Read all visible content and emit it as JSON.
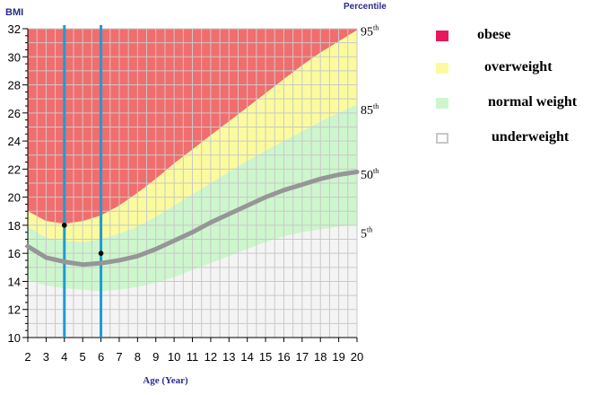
{
  "chart_data": {
    "type": "area",
    "title": "",
    "xlabel": "Age (Year)",
    "ylabel": "BMI",
    "right_axis_title": "Percentile",
    "xlim": [
      2,
      20
    ],
    "ylim": [
      10,
      32
    ],
    "x_ticks": [
      2,
      3,
      4,
      5,
      6,
      7,
      8,
      9,
      10,
      11,
      12,
      13,
      14,
      15,
      16,
      17,
      18,
      19,
      20
    ],
    "y_ticks": [
      10,
      12,
      14,
      16,
      18,
      20,
      22,
      24,
      26,
      28,
      30,
      32
    ],
    "grid": true,
    "percentile_labels": [
      {
        "label": "95th",
        "value": 31.9
      },
      {
        "label": "85th",
        "value": 26.3
      },
      {
        "label": "50th",
        "value": 21.7
      },
      {
        "label": "5th",
        "value": 17.5
      }
    ],
    "x": [
      2,
      3,
      4,
      5,
      6,
      7,
      8,
      9,
      10,
      11,
      12,
      13,
      14,
      15,
      16,
      17,
      18,
      19,
      20
    ],
    "series": [
      {
        "name": "5th",
        "values": [
          14.1,
          13.7,
          13.5,
          13.4,
          13.3,
          13.4,
          13.6,
          13.9,
          14.3,
          14.8,
          15.3,
          15.8,
          16.3,
          16.8,
          17.2,
          17.5,
          17.7,
          17.9,
          18.0
        ]
      },
      {
        "name": "50th",
        "values": [
          16.5,
          15.7,
          15.4,
          15.2,
          15.3,
          15.5,
          15.8,
          16.3,
          16.9,
          17.5,
          18.2,
          18.8,
          19.4,
          20.0,
          20.5,
          20.9,
          21.3,
          21.6,
          21.8
        ]
      },
      {
        "name": "85th",
        "values": [
          17.9,
          17.1,
          16.9,
          16.8,
          17.0,
          17.4,
          17.9,
          18.6,
          19.4,
          20.2,
          21.0,
          21.8,
          22.6,
          23.3,
          24.0,
          24.7,
          25.4,
          26.0,
          26.6
        ]
      },
      {
        "name": "95th",
        "values": [
          19.0,
          18.3,
          18.1,
          18.3,
          18.7,
          19.4,
          20.3,
          21.3,
          22.4,
          23.4,
          24.4,
          25.4,
          26.4,
          27.4,
          28.4,
          29.4,
          30.3,
          31.1,
          31.9
        ]
      }
    ],
    "markers": [
      {
        "x": 4,
        "y": 18.0
      },
      {
        "x": 6,
        "y": 16.0
      }
    ],
    "vertical_lines": [
      4,
      6
    ],
    "colors": {
      "obese": "#f26d6d",
      "overweight": "#fbfb9e",
      "normal": "#cdf6cd",
      "underweight": "#f4f4f4",
      "median_line": "#969696",
      "vertical_line": "#1e9bd7",
      "grid": "#c9c9c9",
      "axis_text": "#2a2a8c"
    },
    "legend": [
      {
        "label": "obese",
        "swatch": "#e8185a"
      },
      {
        "label": "overweight",
        "swatch": "#fbfb9e"
      },
      {
        "label": "normal weight",
        "swatch": "#cdf6cd"
      },
      {
        "label": "underweight",
        "swatch": "#ffffff"
      }
    ]
  }
}
